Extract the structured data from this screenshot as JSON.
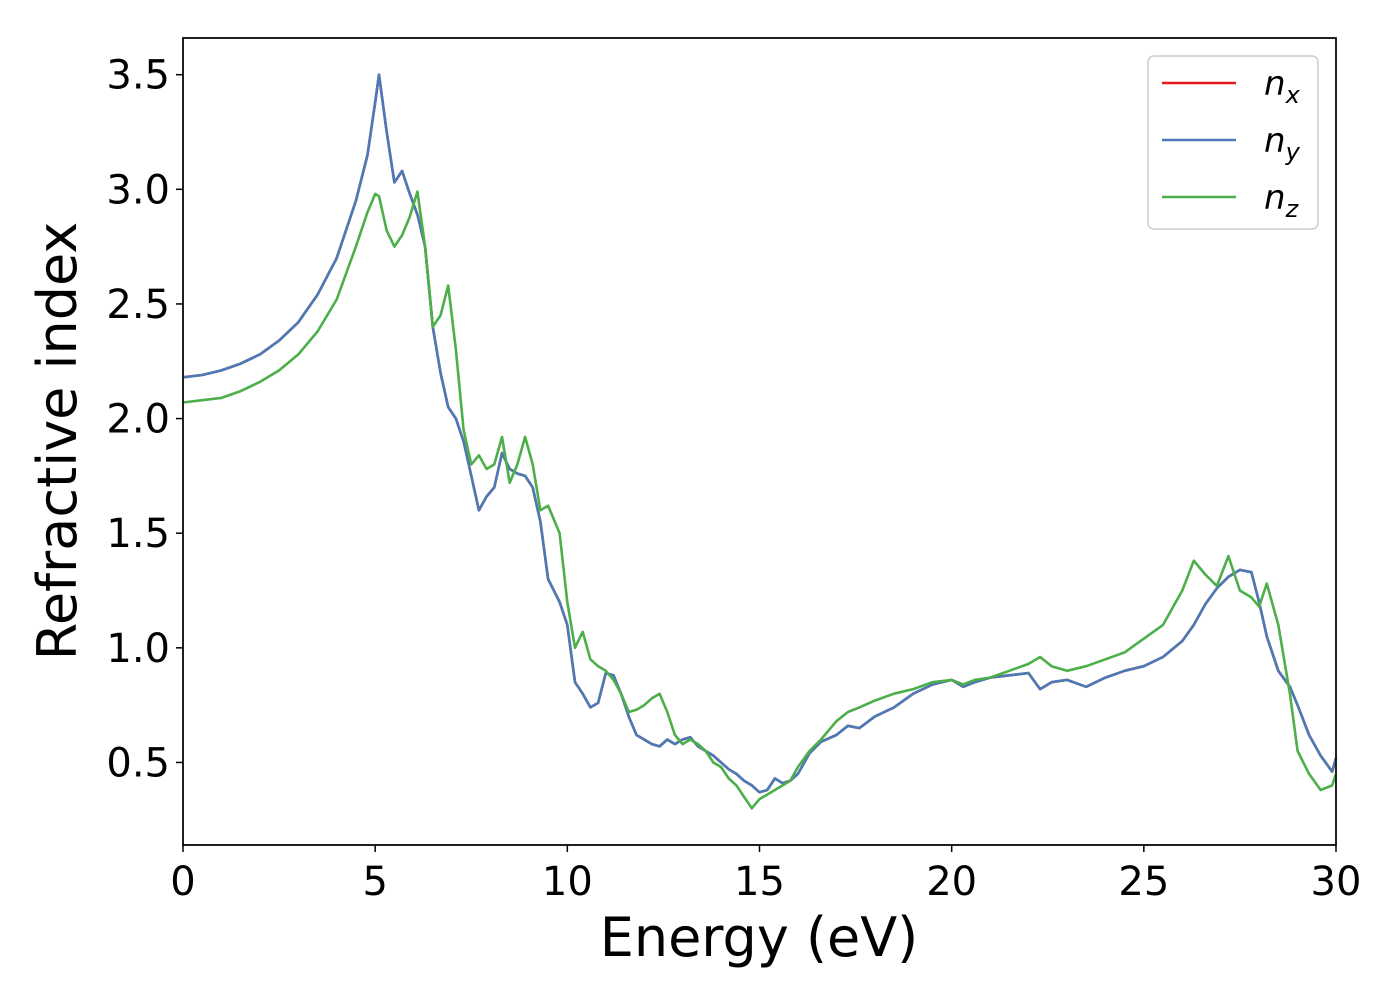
{
  "chart_data": {
    "type": "line",
    "xlabel": "Energy (eV)",
    "ylabel": "Refractive index",
    "xlim": [
      0,
      30
    ],
    "ylim": [
      0.14,
      3.66
    ],
    "xticks": [
      "0",
      "5",
      "10",
      "15",
      "20",
      "25",
      "30"
    ],
    "yticks": [
      "0.5",
      "1.0",
      "1.5",
      "2.0",
      "2.5",
      "3.0",
      "3.5"
    ],
    "grid": false,
    "legend_position": "top-right",
    "series": [
      {
        "name": "n",
        "subscript": "x",
        "color": "#e41a1c",
        "x": [
          0,
          0.5,
          1,
          1.5,
          2,
          2.5,
          3,
          3.5,
          4,
          4.5,
          4.8,
          5.0,
          5.1,
          5.3,
          5.5,
          5.7,
          5.9,
          6.1,
          6.3,
          6.5,
          6.7,
          6.9,
          7.1,
          7.3,
          7.5,
          7.7,
          7.9,
          8.1,
          8.3,
          8.5,
          8.7,
          8.9,
          9.1,
          9.3,
          9.5,
          9.8,
          10.0,
          10.2,
          10.4,
          10.6,
          10.8,
          11.0,
          11.2,
          11.4,
          11.6,
          11.8,
          12.0,
          12.2,
          12.4,
          12.6,
          12.8,
          13.0,
          13.2,
          13.4,
          13.6,
          13.8,
          14.0,
          14.2,
          14.4,
          14.6,
          14.8,
          15.0,
          15.2,
          15.4,
          15.6,
          15.8,
          16.0,
          16.3,
          16.6,
          17.0,
          17.3,
          17.6,
          18.0,
          18.5,
          19.0,
          19.5,
          20.0,
          20.3,
          20.6,
          21.0,
          21.5,
          22.0,
          22.3,
          22.6,
          23.0,
          23.5,
          24.0,
          24.5,
          25.0,
          25.5,
          26.0,
          26.3,
          26.6,
          26.9,
          27.2,
          27.5,
          27.8,
          28.0,
          28.2,
          28.5,
          28.8,
          29.0,
          29.3,
          29.6,
          29.9,
          30.0
        ],
        "y": [
          2.18,
          2.19,
          2.21,
          2.24,
          2.28,
          2.34,
          2.42,
          2.54,
          2.7,
          2.95,
          3.15,
          3.38,
          3.5,
          3.25,
          3.03,
          3.08,
          2.98,
          2.89,
          2.75,
          2.4,
          2.2,
          2.05,
          2.0,
          1.9,
          1.75,
          1.6,
          1.66,
          1.7,
          1.85,
          1.78,
          1.76,
          1.75,
          1.7,
          1.55,
          1.3,
          1.2,
          1.1,
          0.85,
          0.8,
          0.74,
          0.76,
          0.89,
          0.88,
          0.8,
          0.7,
          0.62,
          0.6,
          0.58,
          0.57,
          0.6,
          0.58,
          0.6,
          0.61,
          0.57,
          0.55,
          0.53,
          0.5,
          0.47,
          0.45,
          0.42,
          0.4,
          0.37,
          0.38,
          0.43,
          0.41,
          0.42,
          0.45,
          0.54,
          0.59,
          0.62,
          0.66,
          0.65,
          0.7,
          0.74,
          0.8,
          0.84,
          0.86,
          0.83,
          0.85,
          0.87,
          0.88,
          0.89,
          0.82,
          0.85,
          0.86,
          0.83,
          0.87,
          0.9,
          0.92,
          0.96,
          1.03,
          1.1,
          1.19,
          1.26,
          1.31,
          1.34,
          1.33,
          1.2,
          1.05,
          0.9,
          0.83,
          0.75,
          0.62,
          0.53,
          0.46,
          0.52
        ]
      },
      {
        "name": "n",
        "subscript": "y",
        "color": "#4a7bb7",
        "x": [
          0,
          0.5,
          1,
          1.5,
          2,
          2.5,
          3,
          3.5,
          4,
          4.5,
          4.8,
          5.0,
          5.1,
          5.3,
          5.5,
          5.7,
          5.9,
          6.1,
          6.3,
          6.5,
          6.7,
          6.9,
          7.1,
          7.3,
          7.5,
          7.7,
          7.9,
          8.1,
          8.3,
          8.5,
          8.7,
          8.9,
          9.1,
          9.3,
          9.5,
          9.8,
          10.0,
          10.2,
          10.4,
          10.6,
          10.8,
          11.0,
          11.2,
          11.4,
          11.6,
          11.8,
          12.0,
          12.2,
          12.4,
          12.6,
          12.8,
          13.0,
          13.2,
          13.4,
          13.6,
          13.8,
          14.0,
          14.2,
          14.4,
          14.6,
          14.8,
          15.0,
          15.2,
          15.4,
          15.6,
          15.8,
          16.0,
          16.3,
          16.6,
          17.0,
          17.3,
          17.6,
          18.0,
          18.5,
          19.0,
          19.5,
          20.0,
          20.3,
          20.6,
          21.0,
          21.5,
          22.0,
          22.3,
          22.6,
          23.0,
          23.5,
          24.0,
          24.5,
          25.0,
          25.5,
          26.0,
          26.3,
          26.6,
          26.9,
          27.2,
          27.5,
          27.8,
          28.0,
          28.2,
          28.5,
          28.8,
          29.0,
          29.3,
          29.6,
          29.9,
          30.0
        ],
        "y": [
          2.18,
          2.19,
          2.21,
          2.24,
          2.28,
          2.34,
          2.42,
          2.54,
          2.7,
          2.95,
          3.15,
          3.38,
          3.5,
          3.25,
          3.03,
          3.08,
          2.98,
          2.89,
          2.75,
          2.4,
          2.2,
          2.05,
          2.0,
          1.9,
          1.75,
          1.6,
          1.66,
          1.7,
          1.85,
          1.78,
          1.76,
          1.75,
          1.7,
          1.55,
          1.3,
          1.2,
          1.1,
          0.85,
          0.8,
          0.74,
          0.76,
          0.89,
          0.88,
          0.8,
          0.7,
          0.62,
          0.6,
          0.58,
          0.57,
          0.6,
          0.58,
          0.6,
          0.61,
          0.57,
          0.55,
          0.53,
          0.5,
          0.47,
          0.45,
          0.42,
          0.4,
          0.37,
          0.38,
          0.43,
          0.41,
          0.42,
          0.45,
          0.54,
          0.59,
          0.62,
          0.66,
          0.65,
          0.7,
          0.74,
          0.8,
          0.84,
          0.86,
          0.83,
          0.85,
          0.87,
          0.88,
          0.89,
          0.82,
          0.85,
          0.86,
          0.83,
          0.87,
          0.9,
          0.92,
          0.96,
          1.03,
          1.1,
          1.19,
          1.26,
          1.31,
          1.34,
          1.33,
          1.2,
          1.05,
          0.9,
          0.83,
          0.75,
          0.62,
          0.53,
          0.46,
          0.52
        ]
      },
      {
        "name": "n",
        "subscript": "z",
        "color": "#4daf4a",
        "x": [
          0,
          0.5,
          1,
          1.5,
          2,
          2.5,
          3,
          3.5,
          4,
          4.5,
          4.8,
          5.0,
          5.1,
          5.3,
          5.5,
          5.7,
          5.9,
          6.1,
          6.3,
          6.5,
          6.7,
          6.9,
          7.1,
          7.3,
          7.5,
          7.7,
          7.9,
          8.1,
          8.3,
          8.5,
          8.7,
          8.9,
          9.1,
          9.3,
          9.5,
          9.8,
          10.0,
          10.2,
          10.4,
          10.6,
          10.8,
          11.0,
          11.2,
          11.4,
          11.6,
          11.8,
          12.0,
          12.2,
          12.4,
          12.6,
          12.8,
          13.0,
          13.2,
          13.4,
          13.6,
          13.8,
          14.0,
          14.2,
          14.4,
          14.6,
          14.8,
          15.0,
          15.2,
          15.4,
          15.6,
          15.8,
          16.0,
          16.3,
          16.6,
          17.0,
          17.3,
          17.6,
          18.0,
          18.5,
          19.0,
          19.5,
          20.0,
          20.3,
          20.6,
          21.0,
          21.5,
          22.0,
          22.3,
          22.6,
          23.0,
          23.5,
          24.0,
          24.5,
          25.0,
          25.5,
          26.0,
          26.3,
          26.6,
          26.9,
          27.2,
          27.5,
          27.8,
          28.0,
          28.2,
          28.5,
          28.8,
          29.0,
          29.3,
          29.6,
          29.9,
          30.0
        ],
        "y": [
          2.07,
          2.08,
          2.09,
          2.12,
          2.16,
          2.21,
          2.28,
          2.38,
          2.52,
          2.75,
          2.9,
          2.98,
          2.97,
          2.82,
          2.75,
          2.8,
          2.88,
          2.99,
          2.75,
          2.4,
          2.45,
          2.58,
          2.3,
          1.95,
          1.8,
          1.84,
          1.78,
          1.8,
          1.92,
          1.72,
          1.8,
          1.92,
          1.8,
          1.6,
          1.62,
          1.5,
          1.2,
          1.0,
          1.07,
          0.95,
          0.92,
          0.9,
          0.86,
          0.8,
          0.72,
          0.73,
          0.75,
          0.78,
          0.8,
          0.72,
          0.62,
          0.58,
          0.6,
          0.58,
          0.55,
          0.5,
          0.48,
          0.43,
          0.4,
          0.35,
          0.3,
          0.34,
          0.36,
          0.38,
          0.4,
          0.42,
          0.48,
          0.55,
          0.6,
          0.68,
          0.72,
          0.74,
          0.77,
          0.8,
          0.82,
          0.85,
          0.86,
          0.84,
          0.86,
          0.87,
          0.9,
          0.93,
          0.96,
          0.92,
          0.9,
          0.92,
          0.95,
          0.98,
          1.04,
          1.1,
          1.25,
          1.38,
          1.32,
          1.27,
          1.4,
          1.25,
          1.22,
          1.18,
          1.28,
          1.1,
          0.8,
          0.55,
          0.45,
          0.38,
          0.4,
          0.45
        ]
      }
    ]
  }
}
